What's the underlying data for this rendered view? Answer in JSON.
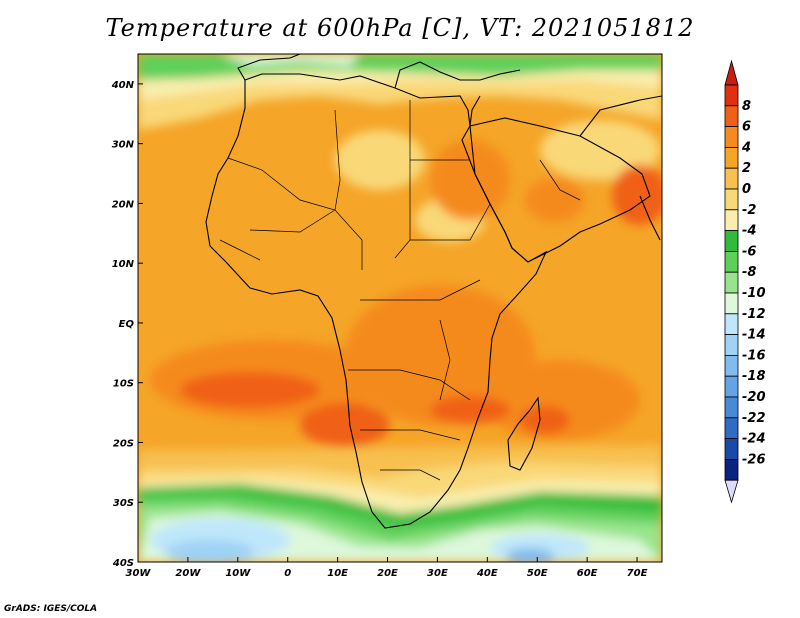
{
  "title": "Temperature at 600hPa [C], VT: 2021051812",
  "credit": "GrADS: IGES/COLA",
  "map": {
    "region": "Africa",
    "projection": "lat-lon",
    "lon_range": [
      -30,
      75
    ],
    "lat_range": [
      -40,
      45
    ],
    "lat_ticks": [
      {
        "value": 40,
        "label": "40N"
      },
      {
        "value": 30,
        "label": "30N"
      },
      {
        "value": 20,
        "label": "20N"
      },
      {
        "value": 10,
        "label": "10N"
      },
      {
        "value": 0,
        "label": "EQ"
      },
      {
        "value": -10,
        "label": "10S"
      },
      {
        "value": -20,
        "label": "20S"
      },
      {
        "value": -30,
        "label": "30S"
      },
      {
        "value": -40,
        "label": "40S"
      }
    ],
    "lon_ticks": [
      {
        "value": -30,
        "label": "30W"
      },
      {
        "value": -20,
        "label": "20W"
      },
      {
        "value": -10,
        "label": "10W"
      },
      {
        "value": 0,
        "label": "0"
      },
      {
        "value": 10,
        "label": "10E"
      },
      {
        "value": 20,
        "label": "20E"
      },
      {
        "value": 30,
        "label": "30E"
      },
      {
        "value": 40,
        "label": "40E"
      },
      {
        "value": 50,
        "label": "50E"
      },
      {
        "value": 60,
        "label": "60E"
      },
      {
        "value": 70,
        "label": "70E"
      }
    ]
  },
  "colorbar": {
    "labels": [
      "8",
      "6",
      "4",
      "2",
      "0",
      "-2",
      "-4",
      "-6",
      "-8",
      "-10",
      "-12",
      "-14",
      "-16",
      "-18",
      "-20",
      "-22",
      "-24",
      "-26"
    ],
    "colors": [
      "#e03010",
      "#f06018",
      "#f58a1e",
      "#f5a528",
      "#f7c050",
      "#f9d878",
      "#f9eeae",
      "#30bb3a",
      "#5ed05a",
      "#98e48c",
      "#ddf8da",
      "#bfe7fb",
      "#9fd2f5",
      "#82bcef",
      "#64a4e5",
      "#478ad8",
      "#2f6cc4",
      "#1a4aa8",
      "#0a2380"
    ],
    "top_arrow_color": "#c81e0e",
    "bottom_arrow_color": "#dcdcf8"
  }
}
